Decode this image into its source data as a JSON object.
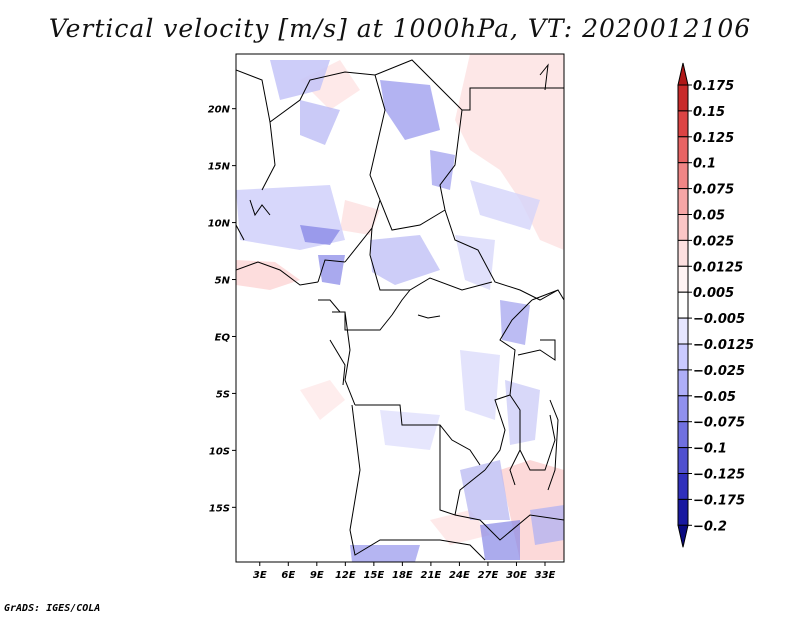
{
  "title": "Vertical velocity [m/s] at 1000hPa, VT: 2020012106",
  "footer": "GrADS: IGES/COLA",
  "map": {
    "region": "Central Africa",
    "lat_labels": [
      "20N",
      "15N",
      "10N",
      "5N",
      "EQ",
      "5S",
      "10S",
      "15S"
    ],
    "lat_values": [
      20,
      15,
      10,
      5,
      0,
      -5,
      -10,
      -15
    ],
    "lon_labels": [
      "3E",
      "6E",
      "9E",
      "12E",
      "15E",
      "18E",
      "21E",
      "24E",
      "27E",
      "30E",
      "33E"
    ],
    "lon_values": [
      3,
      6,
      9,
      12,
      15,
      18,
      21,
      24,
      27,
      30,
      33
    ],
    "lat_range": [
      -19.8,
      24.8
    ],
    "lon_range": [
      0.5,
      35.0
    ]
  },
  "colorbar": {
    "labels": [
      "0.175",
      "0.15",
      "0.125",
      "0.1",
      "0.075",
      "0.05",
      "0.025",
      "0.0125",
      "0.005",
      "−0.005",
      "−0.0125",
      "−0.025",
      "−0.05",
      "−0.075",
      "−0.1",
      "−0.125",
      "−0.175",
      "−0.2"
    ],
    "colors": [
      "#b01818",
      "#c82a2a",
      "#dc4444",
      "#e86464",
      "#f08686",
      "#f6a6a6",
      "#fac6c6",
      "#fde0e0",
      "#fff4f4",
      "#ffffff",
      "#e6e6ff",
      "#cacaff",
      "#aeaef8",
      "#9090ee",
      "#7070e0",
      "#5050d0",
      "#3030bc",
      "#1818a0",
      "#0a0a80"
    ]
  }
}
